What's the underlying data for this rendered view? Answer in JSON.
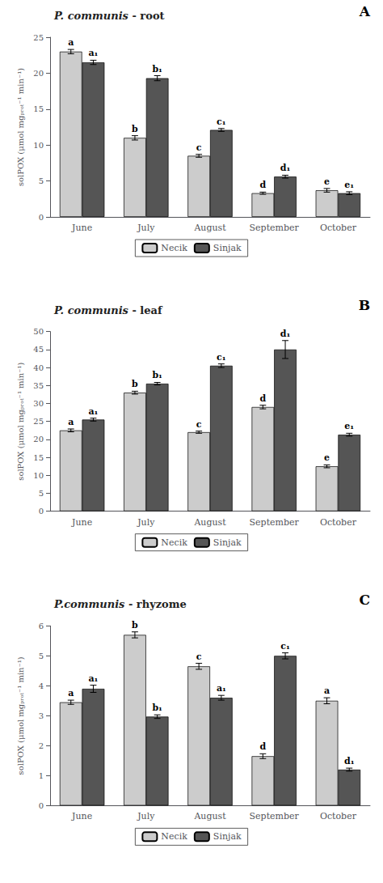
{
  "chart_data": [
    {
      "type": "bar",
      "title": "P. communis - root",
      "annotations": [
        "A"
      ],
      "categories": [
        "June",
        "July",
        "August",
        "September",
        "October"
      ],
      "ylabel": "solPOX (μmol mgₚᵣₒₜ⁻¹ min⁻¹)",
      "ylim": [
        0,
        25
      ],
      "yticks": [
        0,
        5,
        10,
        15,
        20,
        25
      ],
      "grid": false,
      "legend": "bottom",
      "series": [
        {
          "name": "Necik",
          "color": "#cccccc",
          "values": [
            23.0,
            11.0,
            8.5,
            3.3,
            3.7
          ],
          "errors": [
            0.3,
            0.3,
            0.2,
            0.15,
            0.25
          ],
          "annotations": [
            "a",
            "b",
            "c",
            "d",
            "e"
          ]
        },
        {
          "name": "Sinjak",
          "color": "#555555",
          "values": [
            21.5,
            19.3,
            12.1,
            5.6,
            3.3
          ],
          "errors": [
            0.3,
            0.35,
            0.2,
            0.2,
            0.2
          ],
          "annotations": [
            "a₁",
            "b₁",
            "c₁",
            "d₁",
            "e₁"
          ]
        }
      ]
    },
    {
      "type": "bar",
      "title": "P. communis - leaf",
      "annotations": [
        "B"
      ],
      "categories": [
        "June",
        "July",
        "August",
        "September",
        "October"
      ],
      "ylabel": "solPOX (μmol mgₚᵣₒₜ⁻¹ min⁻¹)",
      "ylim": [
        0,
        50
      ],
      "yticks": [
        0,
        5,
        10,
        15,
        20,
        25,
        30,
        35,
        40,
        45,
        50
      ],
      "grid": false,
      "legend": "bottom",
      "series": [
        {
          "name": "Necik",
          "color": "#cccccc",
          "values": [
            22.5,
            33.0,
            22.0,
            29.0,
            12.5
          ],
          "errors": [
            0.4,
            0.4,
            0.3,
            0.5,
            0.4
          ],
          "annotations": [
            "a",
            "b",
            "c",
            "d",
            "e"
          ]
        },
        {
          "name": "Sinjak",
          "color": "#555555",
          "values": [
            25.5,
            35.5,
            40.5,
            45.0,
            21.3
          ],
          "errors": [
            0.4,
            0.35,
            0.5,
            2.5,
            0.4
          ],
          "annotations": [
            "a₁",
            "b₁",
            "c₁",
            "d₁",
            "e₁"
          ]
        }
      ]
    },
    {
      "type": "bar",
      "title": "P.communis - rhyzome",
      "annotations": [
        "C"
      ],
      "categories": [
        "June",
        "July",
        "August",
        "September",
        "October"
      ],
      "ylabel": "solPOX (μmol mgₚᵣₒₜ⁻¹ min⁻¹)",
      "ylim": [
        0,
        6
      ],
      "yticks": [
        0,
        1,
        2,
        3,
        4,
        5,
        6
      ],
      "grid": false,
      "legend": "bottom",
      "series": [
        {
          "name": "Necik",
          "color": "#cccccc",
          "values": [
            3.45,
            5.7,
            4.65,
            1.65,
            3.5
          ],
          "errors": [
            0.07,
            0.1,
            0.1,
            0.08,
            0.1
          ],
          "annotations": [
            "a",
            "b",
            "c",
            "d",
            "a"
          ]
        },
        {
          "name": "Sinjak",
          "color": "#555555",
          "values": [
            3.9,
            2.97,
            3.6,
            5.0,
            1.2
          ],
          "errors": [
            0.12,
            0.06,
            0.08,
            0.1,
            0.05
          ],
          "annotations": [
            "a₁",
            "b₁",
            "a₁",
            "c₁",
            "d₁"
          ]
        }
      ]
    }
  ]
}
